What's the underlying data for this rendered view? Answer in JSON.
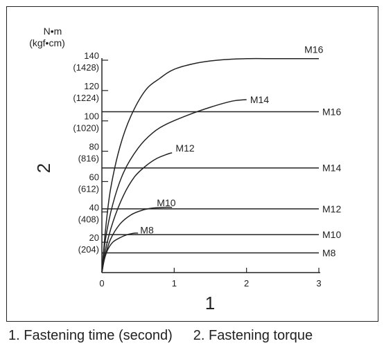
{
  "chart_data": {
    "type": "line",
    "xlabel": "1",
    "ylabel": "2",
    "y_unit_top": "N•m",
    "y_unit_bottom": "(kgf•cm)",
    "xlim": [
      0,
      3
    ],
    "ylim": [
      0,
      140
    ],
    "x_ticks": [
      {
        "value": 0,
        "label": "0"
      },
      {
        "value": 1,
        "label": "1"
      },
      {
        "value": 2,
        "label": "2"
      },
      {
        "value": 3,
        "label": "3"
      }
    ],
    "y_ticks": [
      {
        "value": 20,
        "label": "20",
        "sub": "(204)"
      },
      {
        "value": 40,
        "label": "40",
        "sub": "(408)"
      },
      {
        "value": 60,
        "label": "60",
        "sub": "(612)"
      },
      {
        "value": 80,
        "label": "80",
        "sub": "(816)"
      },
      {
        "value": 100,
        "label": "100",
        "sub": "(1020)"
      },
      {
        "value": 120,
        "label": "120",
        "sub": "(1224)"
      },
      {
        "value": 140,
        "label": "140",
        "sub": "(1428)"
      }
    ],
    "reference_lines": [
      {
        "name": "M16",
        "y": 106
      },
      {
        "name": "M14",
        "y": 69
      },
      {
        "name": "M12",
        "y": 42
      },
      {
        "name": "M10",
        "y": 25
      },
      {
        "name": "M8",
        "y": 13
      }
    ],
    "series": [
      {
        "name": "M16",
        "x": [
          0,
          0.05,
          0.12,
          0.25,
          0.4,
          0.6,
          0.8,
          1.0,
          1.3,
          1.6,
          2.0,
          2.4,
          2.8,
          3.0
        ],
        "y": [
          0,
          28,
          55,
          83,
          103,
          120,
          128,
          134,
          138,
          140,
          141,
          141,
          141,
          141
        ]
      },
      {
        "name": "M14",
        "x": [
          0,
          0.05,
          0.15,
          0.3,
          0.5,
          0.7,
          0.9,
          1.2,
          1.5,
          1.8,
          2.0
        ],
        "y": [
          0,
          22,
          45,
          66,
          82,
          92,
          98,
          104,
          109,
          113,
          114
        ]
      },
      {
        "name": "M12",
        "x": [
          0,
          0.05,
          0.15,
          0.3,
          0.45,
          0.6,
          0.75,
          0.9,
          0.97
        ],
        "y": [
          0,
          15,
          33,
          51,
          63,
          70,
          75,
          78,
          79
        ]
      },
      {
        "name": "M10",
        "x": [
          0,
          0.04,
          0.12,
          0.25,
          0.4,
          0.55,
          0.7,
          0.85,
          0.97
        ],
        "y": [
          0,
          10,
          22,
          32,
          38,
          41,
          42.5,
          43,
          43
        ]
      },
      {
        "name": "M8",
        "x": [
          0,
          0.03,
          0.08,
          0.15,
          0.25,
          0.35,
          0.45,
          0.5
        ],
        "y": [
          0,
          8,
          15,
          20,
          23,
          25,
          26,
          26
        ]
      }
    ],
    "curve_labels": [
      {
        "name": "M16",
        "x": 2.8,
        "y": 147
      },
      {
        "name": "M14",
        "x": 2.05,
        "y": 114
      },
      {
        "name": "M12",
        "x": 1.02,
        "y": 82
      },
      {
        "name": "M10",
        "x": 0.76,
        "y": 46
      },
      {
        "name": "M8",
        "x": 0.53,
        "y": 28
      }
    ]
  },
  "caption": {
    "item1": "1. Fastening time (second)",
    "item2": "2. Fastening torque"
  },
  "colors": {
    "line": "#222222",
    "background": "#ffffff"
  }
}
